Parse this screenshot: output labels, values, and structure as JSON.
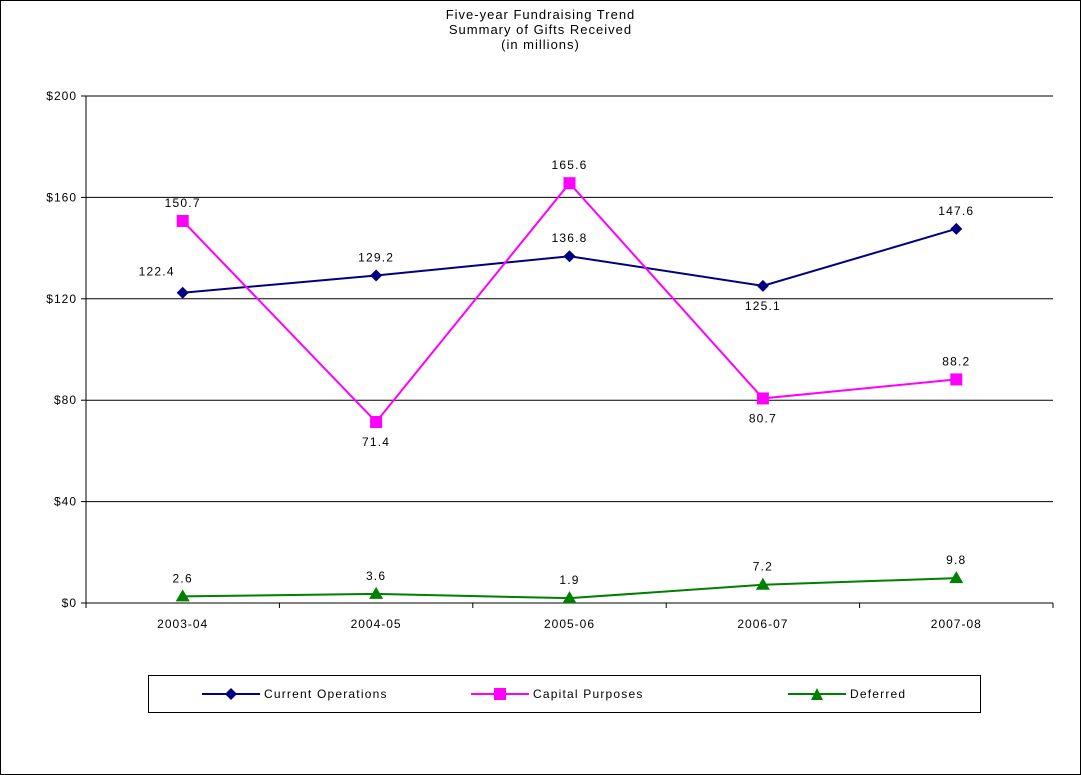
{
  "chart_data": {
    "type": "line",
    "title": [
      "Five-year Fundraising Trend",
      "Summary of Gifts Received",
      "(in millions)"
    ],
    "categories": [
      "2003-04",
      "2004-05",
      "2005-06",
      "2006-07",
      "2007-08"
    ],
    "yticks": [
      "$0",
      "$40",
      "$80",
      "$120",
      "$160",
      "$200"
    ],
    "ylim": [
      0,
      200
    ],
    "ytick_step": 40,
    "grid": "horizontal",
    "legend_position": "bottom",
    "series": [
      {
        "name": "Current Operations",
        "values": [
          122.4,
          129.2,
          136.8,
          125.1,
          147.6
        ],
        "labels": [
          "122.4",
          "129.2",
          "136.8",
          "125.1",
          "147.6"
        ],
        "color": "#000080",
        "marker": "diamond",
        "label_dir": [
          "left",
          "up",
          "up",
          "down",
          "up"
        ]
      },
      {
        "name": "Capital Purposes",
        "values": [
          150.7,
          71.4,
          165.6,
          80.7,
          88.2
        ],
        "labels": [
          "150.7",
          "71.4",
          "165.6",
          "80.7",
          "88.2"
        ],
        "color": "#FF00FF",
        "marker": "square",
        "label_dir": [
          "up",
          "down",
          "up",
          "down",
          "up"
        ]
      },
      {
        "name": "Deferred",
        "values": [
          2.6,
          3.6,
          1.9,
          7.2,
          9.8
        ],
        "labels": [
          "2.6",
          "3.6",
          "1.9",
          "7.2",
          "9.8"
        ],
        "color": "#008000",
        "marker": "triangle",
        "label_dir": [
          "up",
          "up",
          "up",
          "up",
          "up"
        ]
      }
    ]
  }
}
